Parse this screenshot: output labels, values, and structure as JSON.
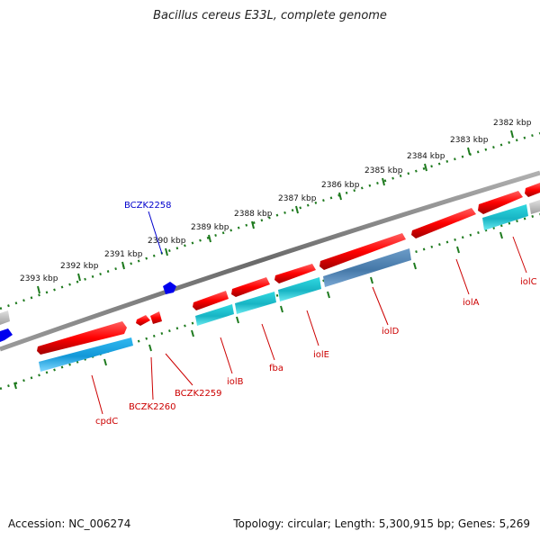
{
  "title": "Bacillus cereus E33L, complete genome",
  "footer": {
    "accession": "Accession: NC_006274",
    "stats": "Topology: circular; Length: 5,300,915 bp; Genes: 5,269"
  },
  "colors": {
    "backbone": "#7a7a7a",
    "tick": "#1e7a1e",
    "gene_red": "#ff0000",
    "gene_cyan": "#18b8c8",
    "gene_blue": "#4682b4",
    "gene_light_blue": "#19a8e8",
    "gene_grey": "#bbbbbb",
    "label_red": "#cc0000",
    "label_blue": "#0000cc"
  },
  "kbp_labels": [
    "2393 kbp",
    "2392 kbp",
    "2391 kbp",
    "2390 kbp",
    "2389 kbp",
    "2388 kbp",
    "2387 kbp",
    "2386 kbp",
    "2385 kbp",
    "2384 kbp",
    "2383 kbp",
    "2382 kbp"
  ],
  "genes": [
    {
      "name": "cpdC",
      "color": "red"
    },
    {
      "name": "BCZK2260",
      "color": "red"
    },
    {
      "name": "BCZK2259",
      "color": "red"
    },
    {
      "name": "iolB",
      "color": "red"
    },
    {
      "name": "fba",
      "color": "red"
    },
    {
      "name": "iolE",
      "color": "red"
    },
    {
      "name": "iolD",
      "color": "red"
    },
    {
      "name": "iolA",
      "color": "red"
    },
    {
      "name": "iolC",
      "color": "red"
    },
    {
      "name": "BCZK2258",
      "color": "blue"
    }
  ]
}
